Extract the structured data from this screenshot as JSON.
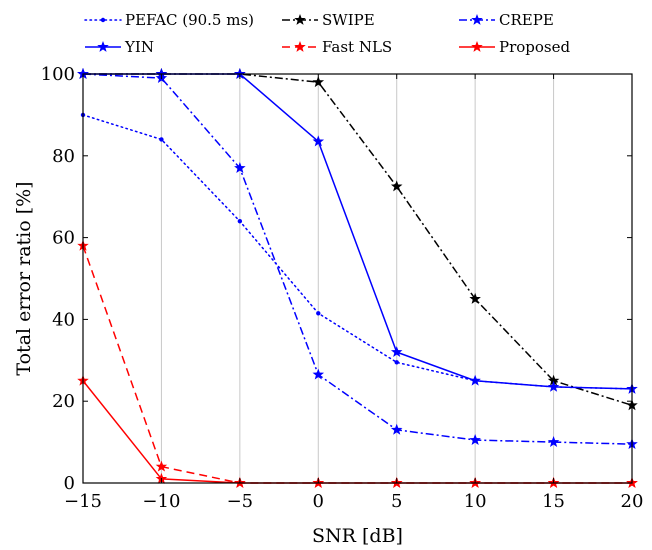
{
  "chart_data": {
    "type": "line",
    "xlabel": "SNR [dB]",
    "ylabel": "Total error ratio [%]",
    "xlim": [
      -15,
      20
    ],
    "ylim": [
      0,
      100
    ],
    "xticks": [
      -15,
      -10,
      -5,
      0,
      5,
      10,
      15,
      20
    ],
    "yticks": [
      0,
      20,
      40,
      60,
      80,
      100
    ],
    "xtick_labels": [
      "−15",
      "−10",
      "−5",
      "0",
      "5",
      "10",
      "15",
      "20"
    ],
    "ytick_labels": [
      "0",
      "20",
      "40",
      "60",
      "80",
      "100"
    ],
    "grid": "vertical",
    "legend_position": "top (above plot)",
    "x": [
      -15,
      -10,
      -5,
      0,
      5,
      10,
      15,
      20
    ],
    "series": [
      {
        "name": "PEFAC (90.5 ms)",
        "color": "#0000ff",
        "dash": "dotted",
        "marker": "dot",
        "values": [
          90,
          84,
          64,
          41.5,
          29.5,
          25,
          23.5,
          23
        ]
      },
      {
        "name": "SWIPE",
        "color": "#000000",
        "dash": "dashdot",
        "marker": "star",
        "values": [
          100,
          100,
          100,
          98,
          72.5,
          45,
          25,
          19
        ]
      },
      {
        "name": "CREPE",
        "color": "#0000ff",
        "dash": "dashdot",
        "marker": "star",
        "values": [
          100,
          99,
          77,
          26.5,
          13,
          10.5,
          10,
          9.5
        ]
      },
      {
        "name": "YIN",
        "color": "#0000ff",
        "dash": "solid",
        "marker": "star",
        "values": [
          100,
          100,
          100,
          83.5,
          32,
          25,
          23.5,
          23
        ]
      },
      {
        "name": "Fast NLS",
        "color": "#ff0000",
        "dash": "dashed",
        "marker": "star",
        "values": [
          58,
          4,
          0,
          0,
          0,
          0,
          0,
          0
        ]
      },
      {
        "name": "Proposed",
        "color": "#ff0000",
        "dash": "solid",
        "marker": "star",
        "values": [
          25,
          1,
          0,
          0,
          0,
          0,
          0,
          0
        ]
      }
    ]
  }
}
